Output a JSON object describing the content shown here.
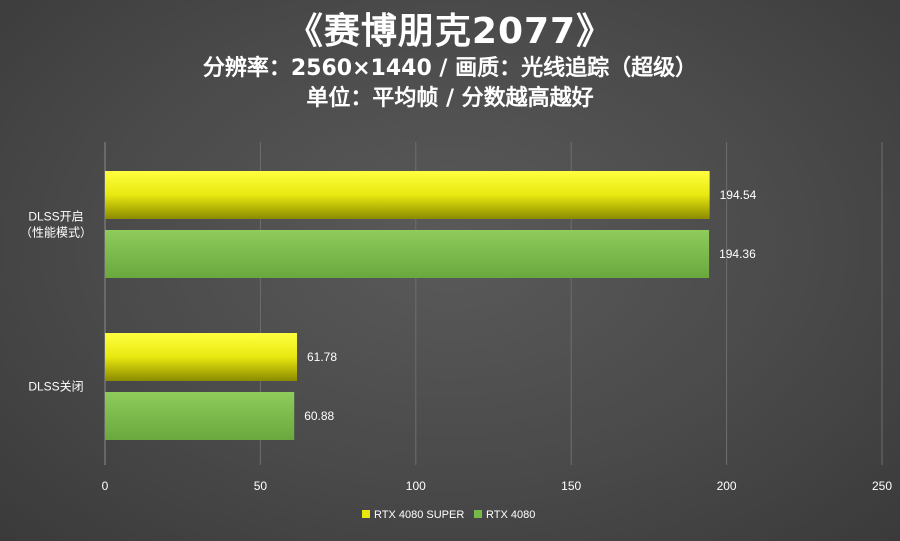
{
  "header": {
    "title": "《赛博朋克2077》",
    "subtitle_1": "分辨率：2560×1440 / 画质：光线追踪（超级）",
    "subtitle_2": "单位：平均帧 / 分数越高越好"
  },
  "chart_data": {
    "type": "bar",
    "orientation": "horizontal",
    "categories": [
      [
        "DLSS开启",
        "（性能模式）"
      ],
      [
        "DLSS关闭"
      ]
    ],
    "series": [
      {
        "name": "RTX 4080 SUPER",
        "color": "#e8e810",
        "values": [
          194.54,
          61.78
        ]
      },
      {
        "name": "RTX 4080",
        "color": "#77b84a",
        "values": [
          194.36,
          60.88
        ]
      }
    ],
    "xlim": [
      0,
      250
    ],
    "xticks": [
      0,
      50,
      100,
      150,
      200,
      250
    ],
    "grid": "vertical",
    "legend_position": "bottom"
  }
}
